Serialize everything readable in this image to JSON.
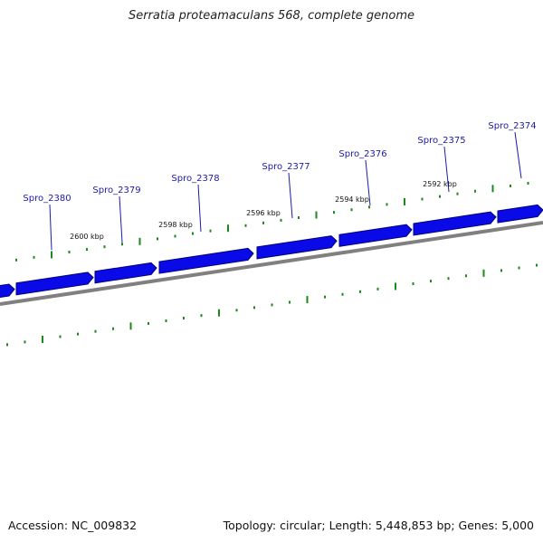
{
  "title": "Serratia proteamaculans 568, complete genome",
  "footer": {
    "accession": "Accession: NC_009832",
    "summary": "Topology: circular; Length: 5,448,853 bp; Genes: 5,000"
  },
  "colors": {
    "gene": "#0a0ae8",
    "gene_edge": "#00007a",
    "backbone": "#808080",
    "tick": "#1a8a1a",
    "gene_label": "#1a1aa8"
  },
  "ruler_labels": [
    "2600 kbp",
    "2598 kbp",
    "2596 kbp",
    "2594 kbp",
    "2592 kbp"
  ],
  "gene_labels": [
    "Spro_2380",
    "Spro_2379",
    "Spro_2378",
    "Spro_2377",
    "Spro_2376",
    "Spro_2375",
    "Spro_2374"
  ]
}
